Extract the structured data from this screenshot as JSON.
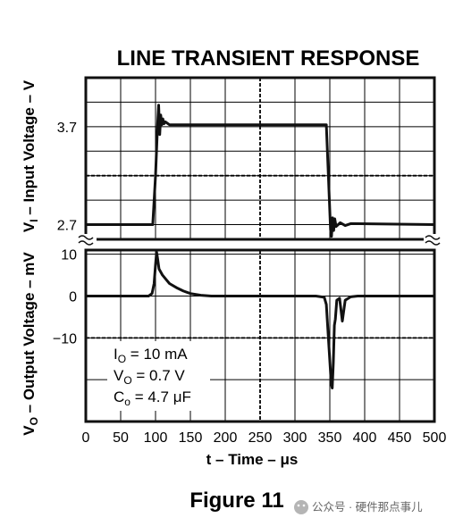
{
  "title": "LINE TRANSIENT RESPONSE",
  "caption": "Figure 11",
  "watermark": "公众号 · 硬件那点事儿",
  "annotations": [
    {
      "main": "I",
      "sub": "O",
      "rest": " = 10 mA"
    },
    {
      "main": "V",
      "sub": "O",
      "rest": " = 0.7 V"
    },
    {
      "main": "C",
      "sub": "o",
      "rest": " = 4.7 μF"
    }
  ],
  "colors": {
    "trace": "#111111",
    "grid": "#000000",
    "frame": "#111111"
  },
  "chart_data": [
    {
      "type": "line",
      "panel": "top",
      "ylabel": {
        "main": "V",
        "sub": "I",
        "rest": " – Input Voltage – V"
      },
      "yticks": [
        "3.7",
        "2.7"
      ],
      "ytick_values": [
        3.7,
        2.7
      ],
      "ylim": [
        2.55,
        4.2
      ],
      "xlim": [
        0,
        500
      ],
      "grid": true,
      "series": [
        {
          "x": [
            0,
            96,
            100,
            103,
            104.5,
            106,
            107.5,
            109,
            110.5,
            112,
            114,
            120,
            345,
            348,
            351,
            352.5,
            354,
            355.5,
            357,
            359,
            365,
            372,
            380,
            500
          ],
          "y": [
            2.7,
            2.7,
            3.2,
            3.72,
            3.92,
            3.62,
            3.82,
            3.72,
            3.78,
            3.73,
            3.75,
            3.72,
            3.72,
            3.2,
            2.65,
            2.58,
            2.77,
            2.64,
            2.76,
            2.68,
            2.72,
            2.69,
            2.71,
            2.7
          ]
        }
      ]
    },
    {
      "type": "line",
      "panel": "bottom",
      "ylabel": {
        "main": "V",
        "sub": "O",
        "rest": " – Output Voltage – mV"
      },
      "yticks": [
        "10",
        "0",
        "−10"
      ],
      "ytick_values": [
        10,
        0,
        -10
      ],
      "ylim": [
        -30,
        11
      ],
      "xlim": [
        0,
        500
      ],
      "xticks": [
        "0",
        "50",
        "100",
        "150",
        "200",
        "250",
        "300",
        "350",
        "400",
        "450",
        "500"
      ],
      "xtick_values": [
        0,
        50,
        100,
        150,
        200,
        250,
        300,
        350,
        400,
        450,
        500
      ],
      "xlabel": "t – Time – μs",
      "grid": true,
      "series": [
        {
          "x": [
            0,
            90,
            95,
            98,
            100,
            101.5,
            103,
            105,
            110,
            115,
            120,
            130,
            140,
            150,
            165,
            180,
            200,
            250,
            330,
            342,
            345,
            348,
            352,
            353.5,
            355,
            356.5,
            358,
            360,
            364,
            368,
            372,
            380,
            390,
            420,
            500
          ],
          "y": [
            0,
            0,
            0.6,
            3,
            7.5,
            10.5,
            9,
            6.5,
            5,
            4,
            3,
            2,
            1.2,
            0.6,
            0.2,
            0,
            0,
            0,
            0,
            -0.3,
            -2,
            -10,
            -21,
            -22,
            -16,
            -7,
            -5.5,
            -1,
            -0.5,
            -6,
            -1,
            -0.2,
            0,
            0,
            0
          ]
        }
      ]
    }
  ]
}
